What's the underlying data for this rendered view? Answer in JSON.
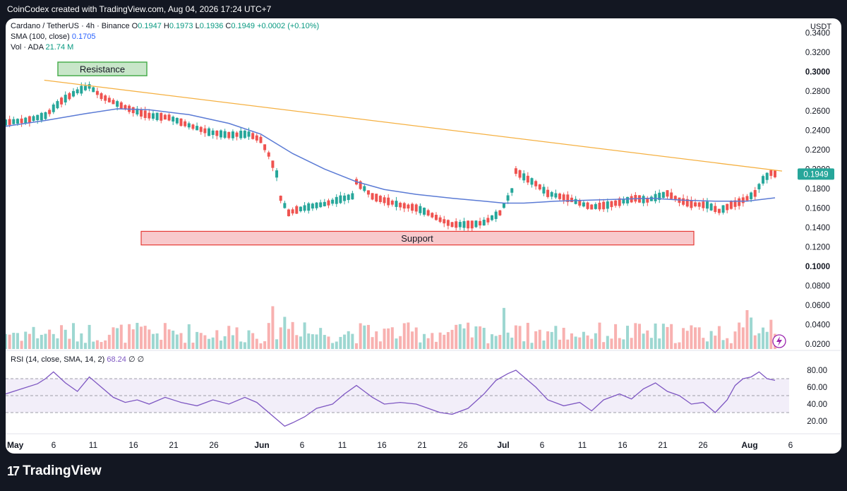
{
  "header": {
    "caption": "CoinCodex created with TradingView.com, Aug 04, 2026 17:24 UTC+7"
  },
  "legend": {
    "symbol": "Cardano / TetherUS · 4h · Binance",
    "o_label": "O",
    "o": "0.1947",
    "h_label": "H",
    "h": "0.1973",
    "l_label": "L",
    "l": "0.1936",
    "c_label": "C",
    "c": "0.1949",
    "change": "+0.0002 (+0.10%)",
    "sma_label": "SMA (100, close)",
    "sma_value": "0.1705",
    "vol_label": "Vol · ADA",
    "vol_value": "21.74 M",
    "rsi_label": "RSI (14, close, SMA, 14, 2)",
    "rsi_value": "68.24",
    "rsi_empty1": "∅",
    "rsi_empty2": "∅"
  },
  "footer": {
    "brand": "TradingView",
    "brand_logo": "17"
  },
  "colors": {
    "up": "#26a69a",
    "down": "#ef5350",
    "sma": "#5b7bd5",
    "trendline": "#f5b041",
    "rsi": "#7e57c2",
    "price_tag": "#26a69a"
  },
  "chart_data": [
    {
      "type": "line",
      "title": "Cardano / TetherUS · 4h · Binance",
      "currency": "USDT",
      "y_ticks": [
        "0.3400",
        "0.3200",
        "0.3000",
        "0.2800",
        "0.2600",
        "0.2400",
        "0.2200",
        "0.2000",
        "0.1800",
        "0.1600",
        "0.1400",
        "0.1200",
        "0.1000",
        "0.0800",
        "0.0600",
        "0.0400",
        "0.0200"
      ],
      "x_ticks": [
        "May",
        "6",
        "11",
        "16",
        "21",
        "26",
        "Jun",
        "6",
        "11",
        "16",
        "21",
        "26",
        "Jul",
        "6",
        "11",
        "16",
        "21",
        "26",
        "Aug",
        "6"
      ],
      "last_price": "0.1949",
      "series": [
        {
          "values": [
            [
              0,
              0.248
            ],
            [
              5,
              0.25
            ],
            [
              10,
              0.255
            ],
            [
              14,
              0.27
            ],
            [
              18,
              0.28
            ],
            [
              21,
              0.285
            ],
            [
              24,
              0.275
            ],
            [
              28,
              0.267
            ],
            [
              31,
              0.262
            ],
            [
              36,
              0.255
            ],
            [
              41,
              0.253
            ],
            [
              46,
              0.245
            ],
            [
              51,
              0.238
            ],
            [
              56,
              0.235
            ],
            [
              61,
              0.236
            ],
            [
              64,
              0.23
            ],
            [
              66,
              0.215
            ],
            [
              68,
              0.195
            ],
            [
              69,
              0.17
            ],
            [
              71,
              0.155
            ],
            [
              73,
              0.158
            ],
            [
              77,
              0.162
            ],
            [
              80,
              0.164
            ],
            [
              84,
              0.169
            ],
            [
              87,
              0.172
            ],
            [
              88,
              0.187
            ],
            [
              90,
              0.18
            ],
            [
              92,
              0.172
            ],
            [
              95,
              0.168
            ],
            [
              99,
              0.163
            ],
            [
              103,
              0.16
            ],
            [
              106,
              0.155
            ],
            [
              109,
              0.148
            ],
            [
              112,
              0.143
            ],
            [
              117,
              0.143
            ],
            [
              120,
              0.145
            ],
            [
              124,
              0.155
            ],
            [
              127,
              0.178
            ],
            [
              128,
              0.198
            ],
            [
              130,
              0.192
            ],
            [
              133,
              0.185
            ],
            [
              136,
              0.175
            ],
            [
              141,
              0.17
            ],
            [
              144,
              0.165
            ],
            [
              147,
              0.161
            ],
            [
              151,
              0.163
            ],
            [
              155,
              0.167
            ],
            [
              158,
              0.17
            ],
            [
              161,
              0.168
            ],
            [
              164,
              0.172
            ],
            [
              166,
              0.175
            ],
            [
              169,
              0.168
            ],
            [
              172,
              0.164
            ],
            [
              176,
              0.163
            ],
            [
              179,
              0.157
            ],
            [
              182,
              0.163
            ],
            [
              184,
              0.166
            ],
            [
              186,
              0.17
            ],
            [
              188,
              0.175
            ],
            [
              190,
              0.189
            ],
            [
              192,
              0.196
            ],
            [
              193,
              0.195
            ]
          ]
        },
        {
          "name": "SMA (100, close)",
          "values": [
            [
              0,
              0.244
            ],
            [
              10,
              0.25
            ],
            [
              20,
              0.257
            ],
            [
              28,
              0.262
            ],
            [
              36,
              0.261
            ],
            [
              46,
              0.256
            ],
            [
              56,
              0.247
            ],
            [
              64,
              0.236
            ],
            [
              72,
              0.216
            ],
            [
              80,
              0.2
            ],
            [
              88,
              0.187
            ],
            [
              95,
              0.179
            ],
            [
              103,
              0.174
            ],
            [
              112,
              0.17
            ],
            [
              120,
              0.167
            ],
            [
              125,
              0.165
            ],
            [
              130,
              0.165
            ],
            [
              138,
              0.167
            ],
            [
              146,
              0.168
            ],
            [
              154,
              0.169
            ],
            [
              162,
              0.17
            ],
            [
              170,
              0.168
            ],
            [
              178,
              0.167
            ],
            [
              186,
              0.167
            ],
            [
              193,
              0.1705
            ]
          ]
        }
      ],
      "annotations": [
        {
          "label": "Resistance",
          "y_range": [
            0.296,
            0.31
          ]
        },
        {
          "label": "Support",
          "y_range": [
            0.122,
            0.136
          ]
        }
      ],
      "trendline": [
        [
          15,
          0.29
        ],
        [
          193,
          0.198
        ]
      ]
    },
    {
      "type": "bar",
      "title": "Vol · ADA",
      "y_ticks": [
        "0.1000",
        "0.0800",
        "0.0600",
        "0.0400",
        "0.0200"
      ]
    },
    {
      "type": "line",
      "title": "RSI (14, close, SMA, 14, 2)",
      "y_ticks": [
        "80.00",
        "60.00",
        "40.00",
        "20.00"
      ],
      "ylim": [
        10,
        90
      ],
      "bands": [
        30,
        50,
        70
      ],
      "last_value": "68.24",
      "series": [
        {
          "name": "RSI",
          "values": [
            [
              0,
              52
            ],
            [
              4,
              58
            ],
            [
              8,
              64
            ],
            [
              10,
              70
            ],
            [
              12,
              78
            ],
            [
              15,
              65
            ],
            [
              18,
              55
            ],
            [
              21,
              72
            ],
            [
              24,
              60
            ],
            [
              27,
              48
            ],
            [
              30,
              42
            ],
            [
              33,
              45
            ],
            [
              36,
              40
            ],
            [
              40,
              48
            ],
            [
              44,
              42
            ],
            [
              48,
              38
            ],
            [
              52,
              45
            ],
            [
              56,
              40
            ],
            [
              60,
              48
            ],
            [
              63,
              42
            ],
            [
              66,
              30
            ],
            [
              68,
              22
            ],
            [
              70,
              14
            ],
            [
              72,
              18
            ],
            [
              75,
              25
            ],
            [
              78,
              35
            ],
            [
              82,
              40
            ],
            [
              85,
              52
            ],
            [
              88,
              62
            ],
            [
              90,
              55
            ],
            [
              92,
              48
            ],
            [
              95,
              40
            ],
            [
              99,
              42
            ],
            [
              103,
              40
            ],
            [
              106,
              35
            ],
            [
              109,
              30
            ],
            [
              112,
              28
            ],
            [
              116,
              35
            ],
            [
              120,
              52
            ],
            [
              123,
              68
            ],
            [
              126,
              76
            ],
            [
              128,
              80
            ],
            [
              130,
              72
            ],
            [
              133,
              60
            ],
            [
              136,
              45
            ],
            [
              140,
              38
            ],
            [
              144,
              42
            ],
            [
              147,
              32
            ],
            [
              150,
              45
            ],
            [
              154,
              52
            ],
            [
              157,
              46
            ],
            [
              160,
              58
            ],
            [
              163,
              65
            ],
            [
              166,
              55
            ],
            [
              169,
              50
            ],
            [
              172,
              40
            ],
            [
              175,
              42
            ],
            [
              178,
              30
            ],
            [
              181,
              45
            ],
            [
              183,
              62
            ],
            [
              185,
              70
            ],
            [
              187,
              72
            ],
            [
              189,
              78
            ],
            [
              191,
              70
            ],
            [
              193,
              68
            ]
          ]
        }
      ]
    }
  ]
}
